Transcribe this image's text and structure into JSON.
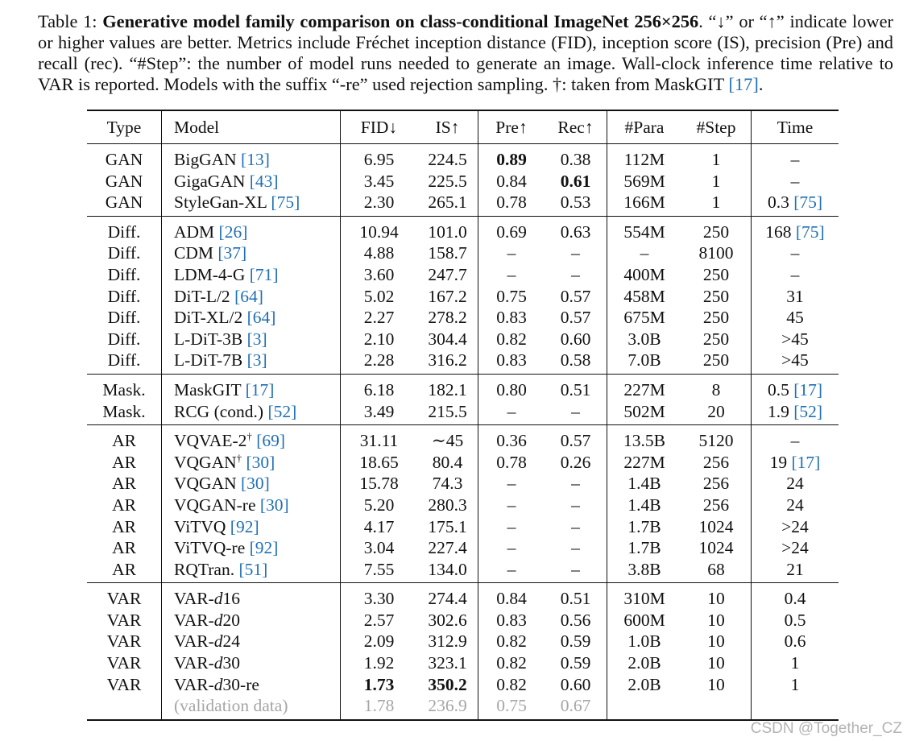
{
  "caption": {
    "label": "Table 1: ",
    "bold_title": "Generative model family comparison on class-conditional ImageNet 256×256",
    "text_1": ". “↓” or “↑” indicate lower or higher values are better. Metrics include Fréchet inception distance (FID), inception score (IS), precision (Pre) and recall (rec). “#Step”: the number of model runs needed to generate an image. Wall-clock inference time relative to VAR is reported. Models with the suffix “-re” used rejection sampling. †: taken from MaskGIT ",
    "cite": "[17]",
    "text_2": "."
  },
  "headers": [
    "Type",
    "Model",
    "FID↓",
    "IS↑",
    "Pre↑",
    "Rec↑",
    "#Para",
    "#Step",
    "Time"
  ],
  "groups": [
    [
      {
        "type": "GAN",
        "model": "BigGAN ",
        "cite": "[13]",
        "fid": "6.95",
        "is": "224.5",
        "pre": "0.89",
        "rec": "0.38",
        "para": "112M",
        "step": "1",
        "time": "–",
        "time_cite": "",
        "bold": [
          "pre"
        ]
      },
      {
        "type": "GAN",
        "model": "GigaGAN ",
        "cite": "[43]",
        "fid": "3.45",
        "is": "225.5",
        "pre": "0.84",
        "rec": "0.61",
        "para": "569M",
        "step": "1",
        "time": "–",
        "time_cite": "",
        "bold": [
          "rec"
        ]
      },
      {
        "type": "GAN",
        "model": "StyleGan-XL ",
        "cite": "[75]",
        "fid": "2.30",
        "is": "265.1",
        "pre": "0.78",
        "rec": "0.53",
        "para": "166M",
        "step": "1",
        "time": "0.3 ",
        "time_cite": "[75]"
      }
    ],
    [
      {
        "type": "Diff.",
        "model": "ADM ",
        "cite": "[26]",
        "fid": "10.94",
        "is": "101.0",
        "pre": "0.69",
        "rec": "0.63",
        "para": "554M",
        "step": "250",
        "time": "168 ",
        "time_cite": "[75]"
      },
      {
        "type": "Diff.",
        "model": "CDM ",
        "cite": "[37]",
        "fid": "4.88",
        "is": "158.7",
        "pre": "–",
        "rec": "–",
        "para": "–",
        "step": "8100",
        "time": "–",
        "time_cite": ""
      },
      {
        "type": "Diff.",
        "model": "LDM-4-G ",
        "cite": "[71]",
        "fid": "3.60",
        "is": "247.7",
        "pre": "–",
        "rec": "–",
        "para": "400M",
        "step": "250",
        "time": "–",
        "time_cite": ""
      },
      {
        "type": "Diff.",
        "model": "DiT-L/2 ",
        "cite": "[64]",
        "fid": "5.02",
        "is": "167.2",
        "pre": "0.75",
        "rec": "0.57",
        "para": "458M",
        "step": "250",
        "time": "31",
        "time_cite": ""
      },
      {
        "type": "Diff.",
        "model": "DiT-XL/2 ",
        "cite": "[64]",
        "fid": "2.27",
        "is": "278.2",
        "pre": "0.83",
        "rec": "0.57",
        "para": "675M",
        "step": "250",
        "time": "45",
        "time_cite": ""
      },
      {
        "type": "Diff.",
        "model": "L-DiT-3B ",
        "cite": "[3]",
        "fid": "2.10",
        "is": "304.4",
        "pre": "0.82",
        "rec": "0.60",
        "para": "3.0B",
        "step": "250",
        "time": ">45",
        "time_cite": ""
      },
      {
        "type": "Diff.",
        "model": "L-DiT-7B ",
        "cite": "[3]",
        "fid": "2.28",
        "is": "316.2",
        "pre": "0.83",
        "rec": "0.58",
        "para": "7.0B",
        "step": "250",
        "time": ">45",
        "time_cite": ""
      }
    ],
    [
      {
        "type": "Mask.",
        "model": "MaskGIT ",
        "cite": "[17]",
        "fid": "6.18",
        "is": "182.1",
        "pre": "0.80",
        "rec": "0.51",
        "para": "227M",
        "step": "8",
        "time": "0.5 ",
        "time_cite": "[17]"
      },
      {
        "type": "Mask.",
        "model": "RCG (cond.) ",
        "cite": "[52]",
        "fid": "3.49",
        "is": "215.5",
        "pre": "–",
        "rec": "–",
        "para": "502M",
        "step": "20",
        "time": "1.9 ",
        "time_cite": "[52]"
      }
    ],
    [
      {
        "type": "AR",
        "model": "VQVAE-2",
        "dagger": "†",
        "model_after": " ",
        "cite": "[69]",
        "fid": "31.11",
        "is": "∼45",
        "pre": "0.36",
        "rec": "0.57",
        "para": "13.5B",
        "step": "5120",
        "time": "–",
        "time_cite": ""
      },
      {
        "type": "AR",
        "model": "VQGAN",
        "dagger": "†",
        "model_after": " ",
        "cite": "[30]",
        "fid": "18.65",
        "is": "80.4",
        "pre": "0.78",
        "rec": "0.26",
        "para": "227M",
        "step": "256",
        "time": "19 ",
        "time_cite": "[17]"
      },
      {
        "type": "AR",
        "model": "VQGAN ",
        "cite": "[30]",
        "fid": "15.78",
        "is": "74.3",
        "pre": "–",
        "rec": "–",
        "para": "1.4B",
        "step": "256",
        "time": "24",
        "time_cite": ""
      },
      {
        "type": "AR",
        "model": "VQGAN-re ",
        "cite": "[30]",
        "fid": "5.20",
        "is": "280.3",
        "pre": "–",
        "rec": "–",
        "para": "1.4B",
        "step": "256",
        "time": "24",
        "time_cite": ""
      },
      {
        "type": "AR",
        "model": "ViTVQ ",
        "cite": "[92]",
        "fid": "4.17",
        "is": "175.1",
        "pre": "–",
        "rec": "–",
        "para": "1.7B",
        "step": "1024",
        "time": ">24",
        "time_cite": ""
      },
      {
        "type": "AR",
        "model": "ViTVQ-re ",
        "cite": "[92]",
        "fid": "3.04",
        "is": "227.4",
        "pre": "–",
        "rec": "–",
        "para": "1.7B",
        "step": "1024",
        "time": ">24",
        "time_cite": ""
      },
      {
        "type": "AR",
        "model": "RQTran. ",
        "cite": "[51]",
        "fid": "7.55",
        "is": "134.0",
        "pre": "–",
        "rec": "–",
        "para": "3.8B",
        "step": "68",
        "time": "21",
        "time_cite": ""
      }
    ],
    [
      {
        "type": "VAR",
        "model": "VAR-",
        "model_it": "d",
        "model_after": "16",
        "cite": "",
        "fid": "3.30",
        "is": "274.4",
        "pre": "0.84",
        "rec": "0.51",
        "para": "310M",
        "step": "10",
        "time": "0.4",
        "time_cite": ""
      },
      {
        "type": "VAR",
        "model": "VAR-",
        "model_it": "d",
        "model_after": "20",
        "cite": "",
        "fid": "2.57",
        "is": "302.6",
        "pre": "0.83",
        "rec": "0.56",
        "para": "600M",
        "step": "10",
        "time": "0.5",
        "time_cite": ""
      },
      {
        "type": "VAR",
        "model": "VAR-",
        "model_it": "d",
        "model_after": "24",
        "cite": "",
        "fid": "2.09",
        "is": "312.9",
        "pre": "0.82",
        "rec": "0.59",
        "para": "1.0B",
        "step": "10",
        "time": "0.6",
        "time_cite": ""
      },
      {
        "type": "VAR",
        "model": "VAR-",
        "model_it": "d",
        "model_after": "30",
        "cite": "",
        "fid": "1.92",
        "is": "323.1",
        "pre": "0.82",
        "rec": "0.59",
        "para": "2.0B",
        "step": "10",
        "time": "1",
        "time_cite": ""
      },
      {
        "type": "VAR",
        "model": "VAR-",
        "model_it": "d",
        "model_after": "30-re",
        "cite": "",
        "fid": "1.73",
        "is": "350.2",
        "pre": "0.82",
        "rec": "0.60",
        "para": "2.0B",
        "step": "10",
        "time": "1",
        "time_cite": "",
        "bold": [
          "fid",
          "is"
        ]
      },
      {
        "type": "",
        "model": "(validation data)",
        "cite": "",
        "fid": "1.78",
        "is": "236.9",
        "pre": "0.75",
        "rec": "0.67",
        "para": "",
        "step": "",
        "time": "",
        "time_cite": "",
        "grey": true
      }
    ]
  ],
  "watermark": "CSDN @Together_CZ"
}
